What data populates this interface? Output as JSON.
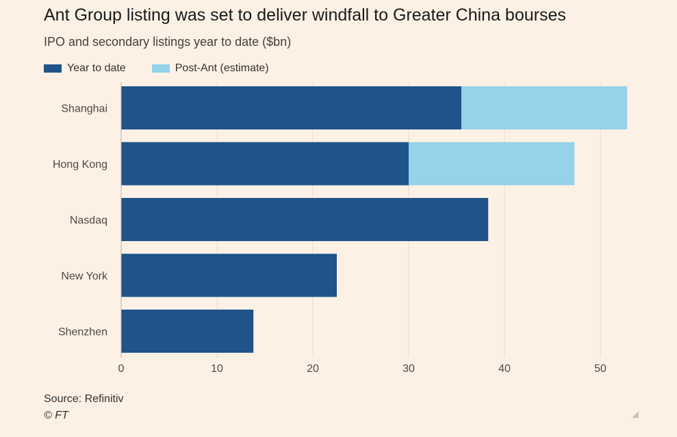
{
  "title": "Ant Group listing was set to deliver windfall to Greater China bourses",
  "subtitle": "IPO and secondary listings year to date ($bn)",
  "source": "Source: Refinitiv",
  "copyright": "© FT",
  "colors": {
    "year_to_date": "#1f5389",
    "post_ant": "#96d2e8",
    "grid": "#e6d9cd",
    "tick_text": "#4d4845"
  },
  "chart_data": {
    "type": "bar",
    "orientation": "horizontal",
    "stacked": true,
    "categories": [
      "Shanghai",
      "Hong Kong",
      "Nasdaq",
      "New York",
      "Shenzhen"
    ],
    "series": [
      {
        "name": "Year to date",
        "values": [
          35.5,
          30.0,
          38.3,
          22.5,
          13.8
        ]
      },
      {
        "name": "Post-Ant (estimate)",
        "values": [
          17.3,
          17.3,
          0,
          0,
          0
        ]
      }
    ],
    "xlim": [
      0,
      53
    ],
    "xticks": [
      0,
      10,
      20,
      30,
      40,
      50
    ],
    "xlabel": "",
    "ylabel": "",
    "grid": true,
    "legend": "top-left"
  }
}
